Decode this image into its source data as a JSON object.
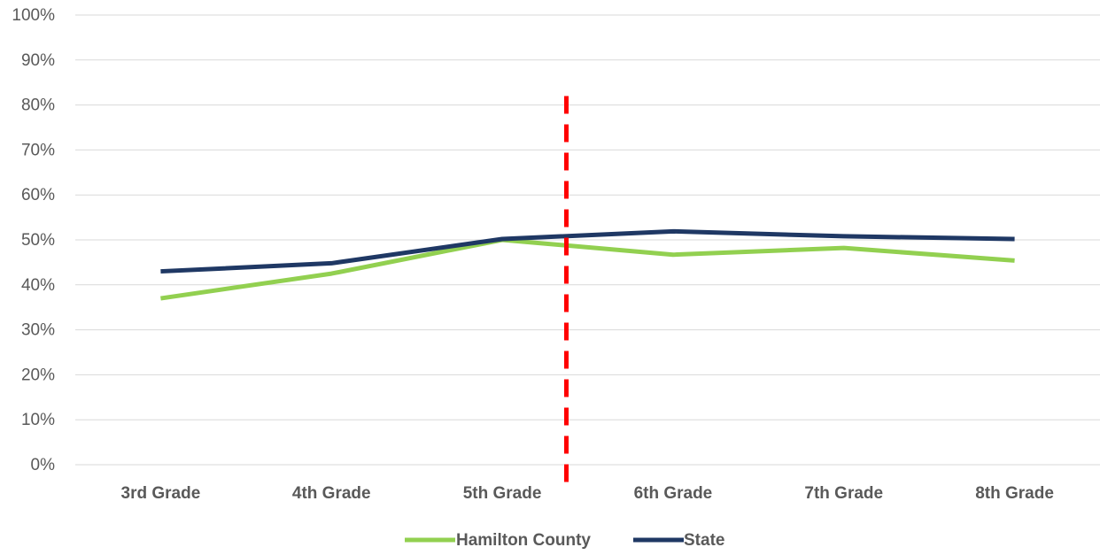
{
  "chart_data": {
    "type": "line",
    "title": "",
    "xlabel": "",
    "ylabel": "",
    "categories": [
      "3rd Grade",
      "4th Grade",
      "5th Grade",
      "6th Grade",
      "7th Grade",
      "8th Grade"
    ],
    "ylim": [
      0,
      100
    ],
    "yticks": [
      "0%",
      "10%",
      "20%",
      "30%",
      "40%",
      "50%",
      "60%",
      "70%",
      "80%",
      "90%",
      "100%"
    ],
    "series": [
      {
        "name": "Hamilton County",
        "color": "#92D050",
        "values": [
          37,
          42.5,
          50,
          46.7,
          48.2,
          45.4
        ]
      },
      {
        "name": "State",
        "color": "#1F3864",
        "values": [
          43,
          44.8,
          50.2,
          51.9,
          50.8,
          50.2
        ]
      }
    ],
    "reference_line": {
      "style": "dashed",
      "color": "#FF0000",
      "between": [
        "5th Grade",
        "6th Grade"
      ],
      "y_range": [
        -4,
        82
      ]
    },
    "grid": true,
    "legend_position": "bottom"
  }
}
